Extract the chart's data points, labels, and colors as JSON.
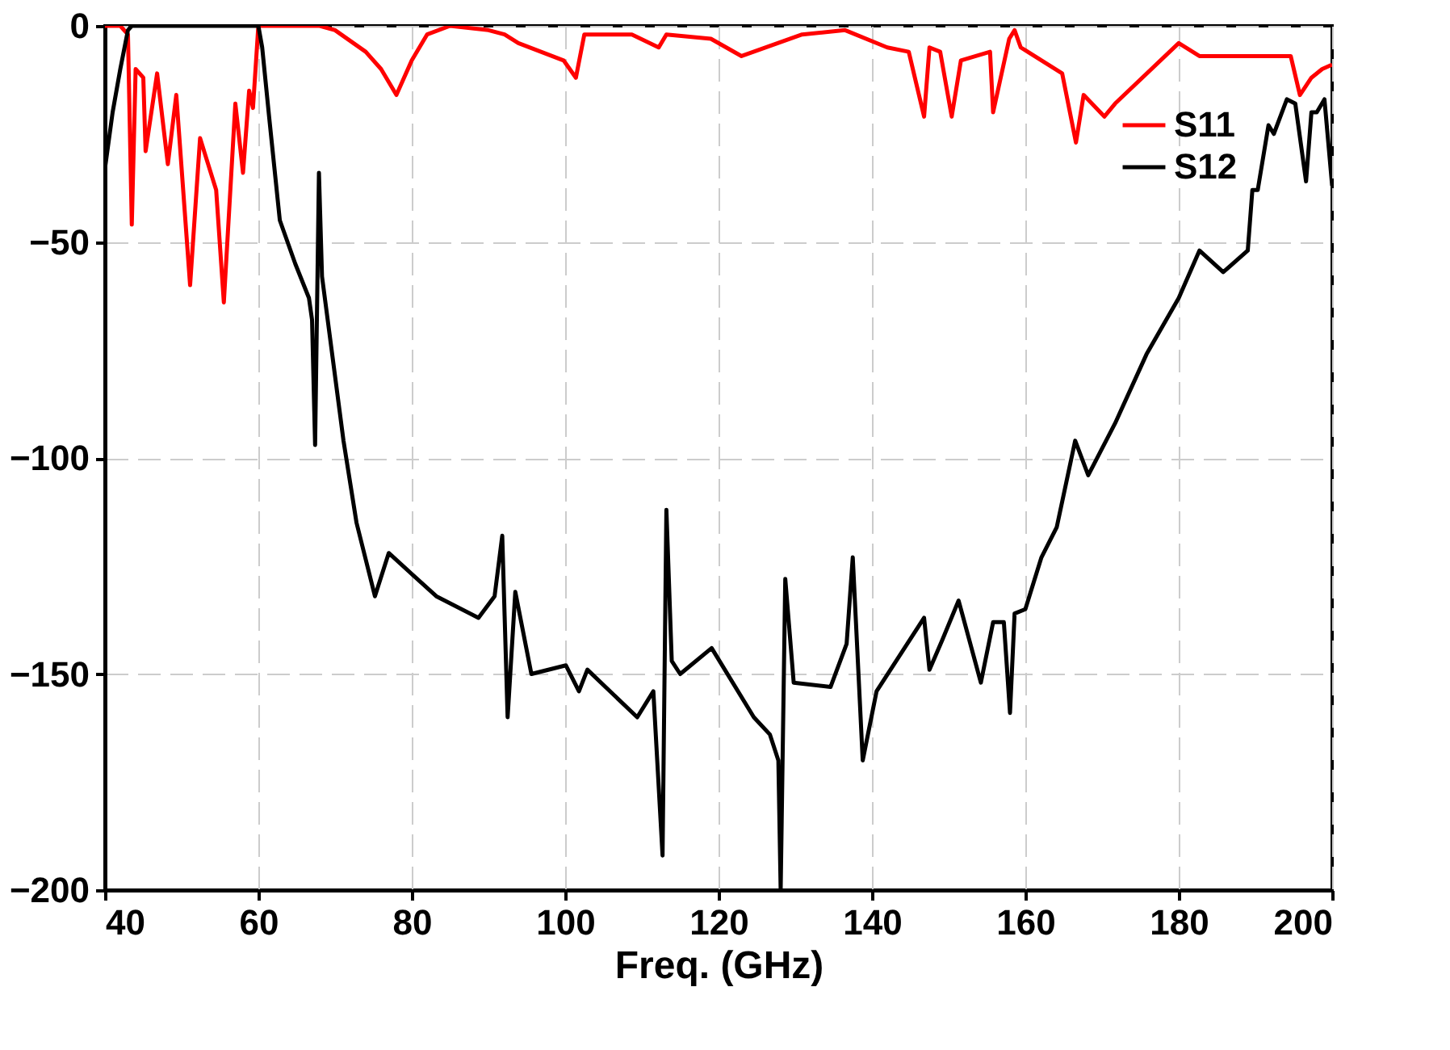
{
  "chart_data": {
    "type": "line",
    "xlabel": "Freq. (GHz)",
    "xlim": [
      40,
      200
    ],
    "ylim": [
      -200,
      0
    ],
    "xticks": [
      40,
      60,
      80,
      100,
      120,
      140,
      160,
      180,
      200
    ],
    "yticks": [
      -200,
      -150,
      -100,
      -50,
      0
    ],
    "grid": true,
    "legend": "top right",
    "marker": "none",
    "line_style": "solid",
    "series": [
      {
        "name": "S11",
        "color": "#ff0000",
        "x": [
          40,
          42,
          43,
          43.5,
          44,
          45,
          45.3,
          46.8,
          48.2,
          49.3,
          51.1,
          52.4,
          54.5,
          55.5,
          57,
          58,
          58.8,
          59.3,
          60,
          68,
          70,
          74,
          76,
          78,
          80,
          82,
          85,
          90,
          92.1,
          93.9,
          99.8,
          101.4,
          102.5,
          108.7,
          112.2,
          113.2,
          119,
          123,
          130.9,
          136.5,
          142,
          144.8,
          146.8,
          147.5,
          148.9,
          150.4,
          151.6,
          155.4,
          155.8,
          157.9,
          158.6,
          159.4,
          164.8,
          166.6,
          167.6,
          170.3,
          171.7,
          180,
          182.7,
          189.6,
          194.6,
          195.8,
          197.3,
          198.7,
          200
        ],
        "values": [
          0,
          0,
          -2,
          -46,
          -10,
          -12,
          -29,
          -11,
          -32,
          -16,
          -60,
          -26,
          -38,
          -64,
          -18,
          -34,
          -15,
          -19,
          0,
          0,
          -1,
          -6,
          -10,
          -16,
          -8,
          -2,
          0,
          -1,
          -2,
          -4,
          -8,
          -12,
          -2,
          -2,
          -5,
          -2,
          -3,
          -7,
          -2,
          -1,
          -5,
          -6,
          -21,
          -5,
          -6,
          -21,
          -8,
          -6,
          -20,
          -3,
          -1,
          -5,
          -11,
          -27,
          -16,
          -21,
          -18,
          -4,
          -7,
          -7,
          -7,
          -16,
          -12,
          -10,
          -9
        ]
      },
      {
        "name": "S12",
        "color": "#000000",
        "x": [
          40,
          41,
          42,
          43,
          43.5,
          60,
          60.5,
          61.4,
          62.8,
          64.8,
          66.6,
          67,
          67.4,
          67.9,
          68.3,
          71.1,
          72.8,
          75.2,
          77,
          83.2,
          88.7,
          90.8,
          91.8,
          92.5,
          93.5,
          95.6,
          100.1,
          101.8,
          102.9,
          109.4,
          111.5,
          112.7,
          113.2,
          113.9,
          115,
          119.1,
          124.6,
          126.7,
          127.8,
          128.1,
          128.7,
          129.8,
          134.6,
          136.7,
          137.5,
          138.8,
          140.6,
          146.8,
          147.5,
          149.2,
          151.3,
          154.2,
          155.8,
          157.2,
          158,
          158.6,
          160,
          162.1,
          164.1,
          166.5,
          168.2,
          171.7,
          175.8,
          180,
          182.7,
          185.8,
          189,
          189.6,
          190.3,
          191.7,
          192.4,
          194.1,
          195.2,
          196.6,
          197.3,
          198,
          199,
          200
        ],
        "values": [
          -33,
          -20,
          -10,
          -1,
          0,
          0,
          -5,
          -21,
          -45,
          -55,
          -63,
          -68,
          -97,
          -34,
          -58,
          -96,
          -115,
          -132,
          -122,
          -132,
          -137,
          -132,
          -118,
          -160,
          -131,
          -150,
          -148,
          -154,
          -149,
          -160,
          -154,
          -192,
          -112,
          -147,
          -150,
          -144,
          -160,
          -164,
          -170,
          -200,
          -128,
          -152,
          -153,
          -143,
          -123,
          -170,
          -154,
          -137,
          -149,
          -142,
          -133,
          -152,
          -138,
          -138,
          -159,
          -136,
          -135,
          -123,
          -116,
          -96,
          -104,
          -92,
          -76,
          -63,
          -52,
          -57,
          -52,
          -38,
          -38,
          -23,
          -25,
          -17,
          -18,
          -36,
          -20,
          -20,
          -17,
          -37
        ]
      }
    ]
  }
}
